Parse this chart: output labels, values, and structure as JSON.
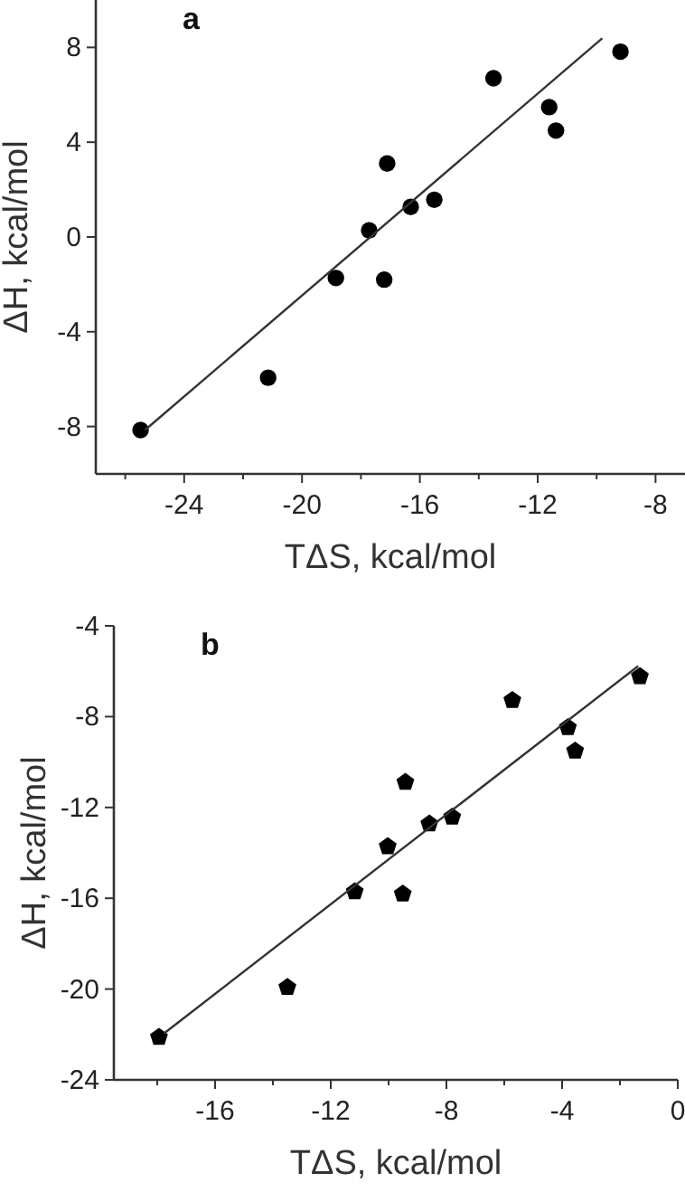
{
  "chart_data": [
    {
      "type": "scatter",
      "title": "a",
      "xlabel": "TΔS, kcal/mol",
      "ylabel": "ΔH, kcal/mol",
      "xlim": [
        -27,
        -7
      ],
      "ylim": [
        -10,
        10
      ],
      "xticks": [
        {
          "value": -26,
          "label": null
        },
        -24,
        {
          "value": -22,
          "label": null
        },
        -20,
        {
          "value": -18,
          "label": null
        },
        -16,
        {
          "value": -14,
          "label": null
        },
        -12,
        {
          "value": -10,
          "label": null
        },
        -8
      ],
      "yticks": [
        -8,
        -4,
        0,
        4,
        8
      ],
      "series": [
        {
          "type": "scatter",
          "color": "#000000",
          "marker": "circle",
          "x": [
            -25.48,
            -21.15,
            -18.85,
            -17.72,
            -17.21,
            -17.11,
            -16.31,
            -15.51,
            -13.5,
            -11.61,
            -11.38,
            -9.19
          ],
          "values": [
            -8.15,
            -5.94,
            -1.73,
            0.28,
            -1.8,
            3.1,
            1.27,
            1.57,
            6.7,
            5.48,
            4.49,
            7.82
          ]
        },
        {
          "type": "line",
          "color": "#333333",
          "marker": "none",
          "x": [
            -25.33,
            -9.81
          ],
          "values": [
            -8.15,
            8.38
          ]
        }
      ]
    },
    {
      "type": "scatter",
      "title": "b",
      "xlabel": "TΔS, kcal/mol",
      "ylabel": "ΔH, kcal/mol",
      "xlim": [
        -19.5,
        0
      ],
      "ylim": [
        -24,
        -4
      ],
      "xticks": [
        {
          "value": -18,
          "label": null
        },
        -16,
        {
          "value": -14,
          "label": null
        },
        -12,
        {
          "value": -10,
          "label": null
        },
        -8,
        {
          "value": -6,
          "label": null
        },
        -4,
        {
          "value": -2,
          "label": null
        },
        0
      ],
      "yticks": [
        -24,
        -20,
        -16,
        -12,
        -8,
        -4
      ],
      "series": [
        {
          "type": "scatter",
          "color": "#000000",
          "x": [
            -17.94,
            -13.5,
            -11.17,
            -10.03,
            -9.51,
            -9.42,
            -8.59,
            -7.8,
            -5.72,
            -3.8,
            -3.55,
            -1.31
          ],
          "values": [
            -22.12,
            -19.92,
            -15.71,
            -13.72,
            -15.81,
            -10.89,
            -12.72,
            -12.42,
            -7.28,
            -8.48,
            -9.51,
            -6.23
          ]
        },
        {
          "type": "line",
          "color": "#333333",
          "marker": "none",
          "x": [
            -17.77,
            -1.37
          ],
          "values": [
            -21.96,
            -5.77
          ]
        }
      ]
    }
  ]
}
